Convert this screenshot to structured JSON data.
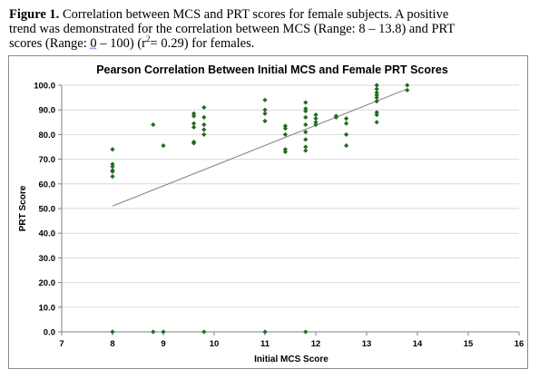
{
  "caption": {
    "label": "Figure 1.",
    "line1_rest": "Correlation between MCS and PRT scores for female subjects. A positive",
    "line2": "trend was demonstrated for the correlation between MCS (Range: 8 – 13.8) and PRT",
    "line3a": "scores (Range:",
    "line3_zero": "0",
    "line3b": "– 100) (r",
    "line3_sup": "2",
    "line3c": "= 0.29) for females."
  },
  "chart_data": {
    "type": "scatter",
    "title": "Pearson Correlation Between Initial MCS and Female PRT Scores",
    "xlabel": "Initial MCS Score",
    "ylabel": "PRT Score",
    "xlim": [
      7,
      16
    ],
    "ylim": [
      0,
      100
    ],
    "x_ticks": [
      "7",
      "8",
      "9",
      "10",
      "11",
      "12",
      "13",
      "14",
      "15",
      "16"
    ],
    "y_ticks": [
      "0.0",
      "10.0",
      "20.0",
      "30.0",
      "40.0",
      "50.0",
      "60.0",
      "70.0",
      "80.0",
      "90.0",
      "100.0"
    ],
    "grid": "horizontal",
    "marker_color": "#1f6b1f",
    "trendline": {
      "x": [
        8,
        13.8
      ],
      "y": [
        51,
        98.5
      ],
      "color": "#808080"
    },
    "points": [
      [
        8,
        74
      ],
      [
        8,
        68
      ],
      [
        8,
        67
      ],
      [
        8,
        65.5
      ],
      [
        8,
        65
      ],
      [
        8,
        63
      ],
      [
        8,
        0
      ],
      [
        8.8,
        84
      ],
      [
        8.8,
        0
      ],
      [
        9,
        75.5
      ],
      [
        9,
        0
      ],
      [
        9.6,
        88.5
      ],
      [
        9.6,
        87.5
      ],
      [
        9.6,
        84.5
      ],
      [
        9.6,
        83
      ],
      [
        9.6,
        77
      ],
      [
        9.6,
        76.5
      ],
      [
        9.8,
        91
      ],
      [
        9.8,
        87
      ],
      [
        9.8,
        84
      ],
      [
        9.8,
        82
      ],
      [
        9.8,
        80
      ],
      [
        9.8,
        0
      ],
      [
        11,
        94
      ],
      [
        11,
        90
      ],
      [
        11,
        88.5
      ],
      [
        11,
        85.5
      ],
      [
        11,
        0
      ],
      [
        11.4,
        83.5
      ],
      [
        11.4,
        82.5
      ],
      [
        11.4,
        80
      ],
      [
        11.4,
        74
      ],
      [
        11.4,
        73
      ],
      [
        11.8,
        93
      ],
      [
        11.8,
        90.5
      ],
      [
        11.8,
        89.5
      ],
      [
        11.8,
        87
      ],
      [
        11.8,
        84
      ],
      [
        11.8,
        81
      ],
      [
        11.8,
        78
      ],
      [
        11.8,
        75
      ],
      [
        11.8,
        73.5
      ],
      [
        11.8,
        0
      ],
      [
        12,
        88
      ],
      [
        12,
        86.5
      ],
      [
        12,
        85
      ],
      [
        12,
        84
      ],
      [
        12.4,
        87.5
      ],
      [
        12.4,
        87
      ],
      [
        12.6,
        86.5
      ],
      [
        12.6,
        84.5
      ],
      [
        12.6,
        80
      ],
      [
        12.6,
        75.5
      ],
      [
        13.2,
        100
      ],
      [
        13.2,
        98.5
      ],
      [
        13.2,
        97
      ],
      [
        13.2,
        96
      ],
      [
        13.2,
        95
      ],
      [
        13.2,
        93.5
      ],
      [
        13.2,
        89
      ],
      [
        13.2,
        88
      ],
      [
        13.2,
        85
      ],
      [
        13.8,
        100
      ],
      [
        13.8,
        98
      ]
    ]
  }
}
